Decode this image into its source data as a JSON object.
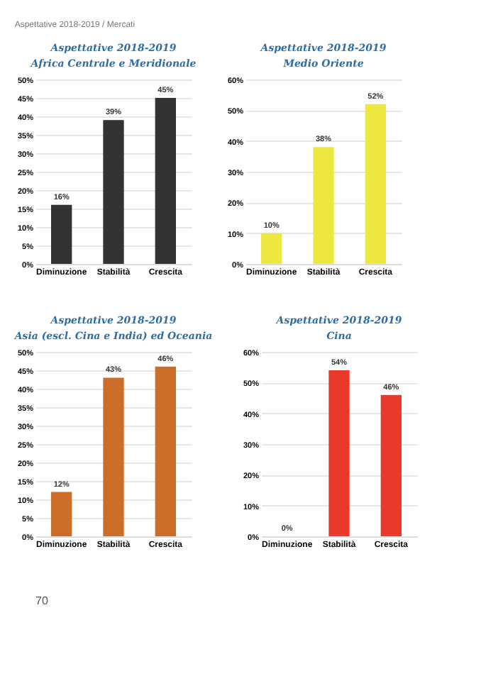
{
  "chart_data": [
    {
      "type": "bar",
      "title": "Aspettative 2018-2019",
      "subtitle": "Africa Centrale e Meridionale",
      "annotations": [
        "Aspettative 2018-2019 / Mercati",
        "70"
      ],
      "categories": [
        "Diminuzione",
        "Stabilità",
        "Crescita"
      ],
      "values": [
        16,
        39,
        45
      ],
      "value_labels": [
        "16%",
        "39%",
        "45%"
      ],
      "color": "#333333",
      "ylim": [
        0,
        50
      ],
      "yticks": [
        {
          "value": 0,
          "label": "0%"
        },
        {
          "value": 5,
          "label": "5%"
        },
        {
          "value": 10,
          "label": "10%"
        },
        {
          "value": 15,
          "label": "15%"
        },
        {
          "value": 20,
          "label": "20%"
        },
        {
          "value": 25,
          "label": "25%"
        },
        {
          "value": 30,
          "label": "30%"
        },
        {
          "value": 35,
          "label": "35%"
        },
        {
          "value": 40,
          "label": "40%"
        },
        {
          "value": 45,
          "label": "45%"
        },
        {
          "value": 50,
          "label": "50%"
        }
      ],
      "grid": "y"
    },
    {
      "type": "bar",
      "title": "Aspettative 2018-2019",
      "subtitle": "Medio Oriente",
      "categories": [
        "Diminuzione",
        "Stabilità",
        "Crescita"
      ],
      "values": [
        10,
        38,
        52
      ],
      "value_labels": [
        "10%",
        "38%",
        "52%"
      ],
      "color": "#ece840",
      "ylim": [
        0,
        60
      ],
      "yticks": [
        {
          "value": 0,
          "label": "0%"
        },
        {
          "value": 10,
          "label": "10%"
        },
        {
          "value": 20,
          "label": "20%"
        },
        {
          "value": 30,
          "label": "30%"
        },
        {
          "value": 40,
          "label": "40%"
        },
        {
          "value": 50,
          "label": "50%"
        },
        {
          "value": 60,
          "label": "60%"
        }
      ],
      "grid": "y"
    },
    {
      "type": "bar",
      "title": "Aspettative 2018-2019",
      "subtitle": "Asia (escl. Cina e India) ed Oceania",
      "categories": [
        "Diminuzione",
        "Stabilità",
        "Crescita"
      ],
      "values": [
        12,
        43,
        46
      ],
      "value_labels": [
        "12%",
        "43%",
        "46%"
      ],
      "color": "#cc6d2a",
      "ylim": [
        0,
        50
      ],
      "yticks": [
        {
          "value": 0,
          "label": "0%"
        },
        {
          "value": 5,
          "label": "5%"
        },
        {
          "value": 10,
          "label": "10%"
        },
        {
          "value": 15,
          "label": "15%"
        },
        {
          "value": 20,
          "label": "20%"
        },
        {
          "value": 25,
          "label": "25%"
        },
        {
          "value": 30,
          "label": "30%"
        },
        {
          "value": 35,
          "label": "35%"
        },
        {
          "value": 40,
          "label": "40%"
        },
        {
          "value": 45,
          "label": "45%"
        },
        {
          "value": 50,
          "label": "50%"
        }
      ],
      "grid": "y"
    },
    {
      "type": "bar",
      "title": "Aspettative 2018-2019",
      "subtitle": "Cina",
      "categories": [
        "Diminuzione",
        "Stabilità",
        "Crescita"
      ],
      "values": [
        0,
        54,
        46
      ],
      "value_labels": [
        "0%",
        "54%",
        "46%"
      ],
      "color": "#e8392a",
      "ylim": [
        0,
        60
      ],
      "yticks": [
        {
          "value": 0,
          "label": "0%"
        },
        {
          "value": 10,
          "label": "10%"
        },
        {
          "value": 20,
          "label": "20%"
        },
        {
          "value": 30,
          "label": "30%"
        },
        {
          "value": 40,
          "label": "40%"
        },
        {
          "value": 50,
          "label": "50%"
        },
        {
          "value": 60,
          "label": "60%"
        }
      ],
      "grid": "y"
    }
  ]
}
